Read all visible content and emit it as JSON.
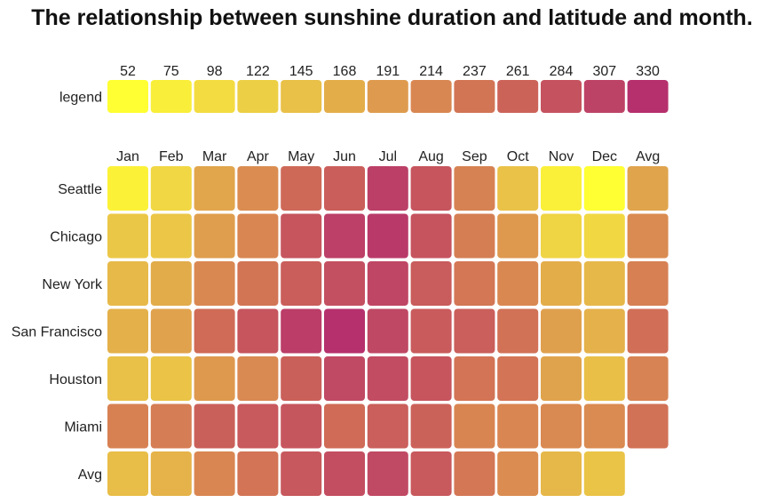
{
  "chart_data": {
    "type": "heatmap",
    "title": "The relationship between sunshine duration and latitude and month.",
    "legend": {
      "label": "legend",
      "values": [
        52,
        75,
        98,
        122,
        145,
        168,
        191,
        214,
        237,
        261,
        284,
        307,
        330
      ],
      "colors": [
        "#ffff33",
        "#f9ee3a",
        "#f3dc42",
        "#edcf45",
        "#e9c048",
        "#e3ae4a",
        "#de9b4f",
        "#d98752",
        "#d27555",
        "#cc6359",
        "#c5535f",
        "#bd4366",
        "#b5306c"
      ]
    },
    "columns": [
      "Jan",
      "Feb",
      "Mar",
      "Apr",
      "May",
      "Jun",
      "Jul",
      "Aug",
      "Sep",
      "Oct",
      "Nov",
      "Dec",
      "Avg"
    ],
    "rows": [
      "Seattle",
      "Chicago",
      "New York",
      "San Francisco",
      "Houston",
      "Miami",
      "Avg"
    ],
    "values": [
      [
        69,
        108,
        178,
        207,
        253,
        268,
        312,
        281,
        221,
        142,
        72,
        52,
        180
      ],
      [
        135,
        136,
        187,
        215,
        281,
        311,
        318,
        283,
        226,
        193,
        113,
        106,
        209
      ],
      [
        154,
        171,
        213,
        237,
        268,
        289,
        302,
        271,
        235,
        213,
        169,
        155,
        223
      ],
      [
        165,
        182,
        251,
        281,
        314,
        330,
        300,
        272,
        267,
        243,
        185,
        164,
        246
      ],
      [
        144,
        141,
        193,
        212,
        266,
        298,
        294,
        281,
        238,
        239,
        181,
        146,
        219
      ],
      [
        222,
        227,
        266,
        275,
        280,
        251,
        267,
        263,
        216,
        215,
        212,
        209,
        242
      ],
      [
        148,
        161,
        215,
        238,
        277,
        291,
        299,
        275,
        234,
        208,
        155,
        139,
        null
      ]
    ]
  }
}
